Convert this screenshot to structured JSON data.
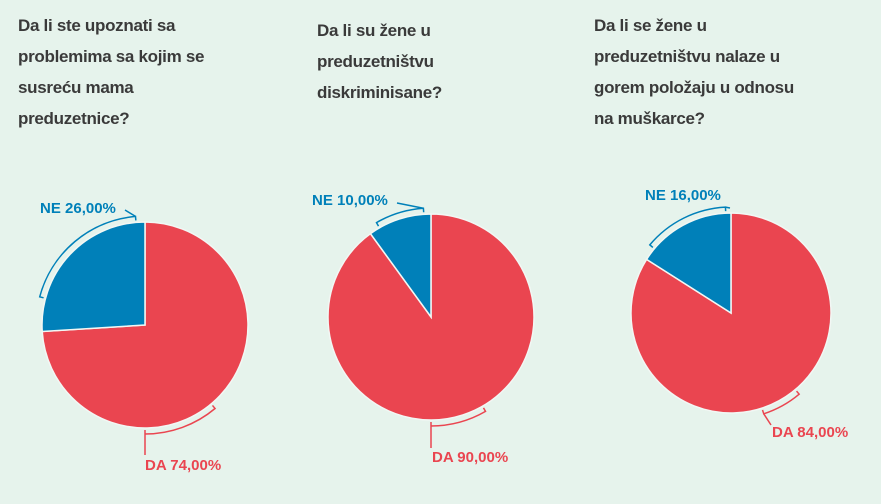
{
  "colors": {
    "DA": "#ea4550",
    "NE": "#0080b9",
    "background": "#e6f3ec"
  },
  "chart_data": [
    {
      "type": "pie",
      "title_lines": [
        "Da li ste upoznati sa",
        "problemima sa kojim se",
        "susreću mama",
        "preduzetnice?"
      ],
      "slices": [
        {
          "name": "DA",
          "value": 74.0,
          "label": "DA 74,00%"
        },
        {
          "name": "NE",
          "value": 26.0,
          "label": "NE 26,00%"
        }
      ]
    },
    {
      "type": "pie",
      "title_lines": [
        "Da li su žene u",
        "preduzetništvu",
        "diskriminisane?"
      ],
      "slices": [
        {
          "name": "DA",
          "value": 90.0,
          "label": "DA 90,00%"
        },
        {
          "name": "NE",
          "value": 10.0,
          "label": "NE 10,00%"
        }
      ]
    },
    {
      "type": "pie",
      "title_lines": [
        "Da li se žene u",
        "preduzetništvu nalaze u",
        "gorem položaju u odnosu",
        "na muškarce?"
      ],
      "slices": [
        {
          "name": "DA",
          "value": 84.0,
          "label": "DA 84,00%"
        },
        {
          "name": "NE",
          "value": 16.0,
          "label": "NE 16,00%"
        }
      ]
    }
  ]
}
